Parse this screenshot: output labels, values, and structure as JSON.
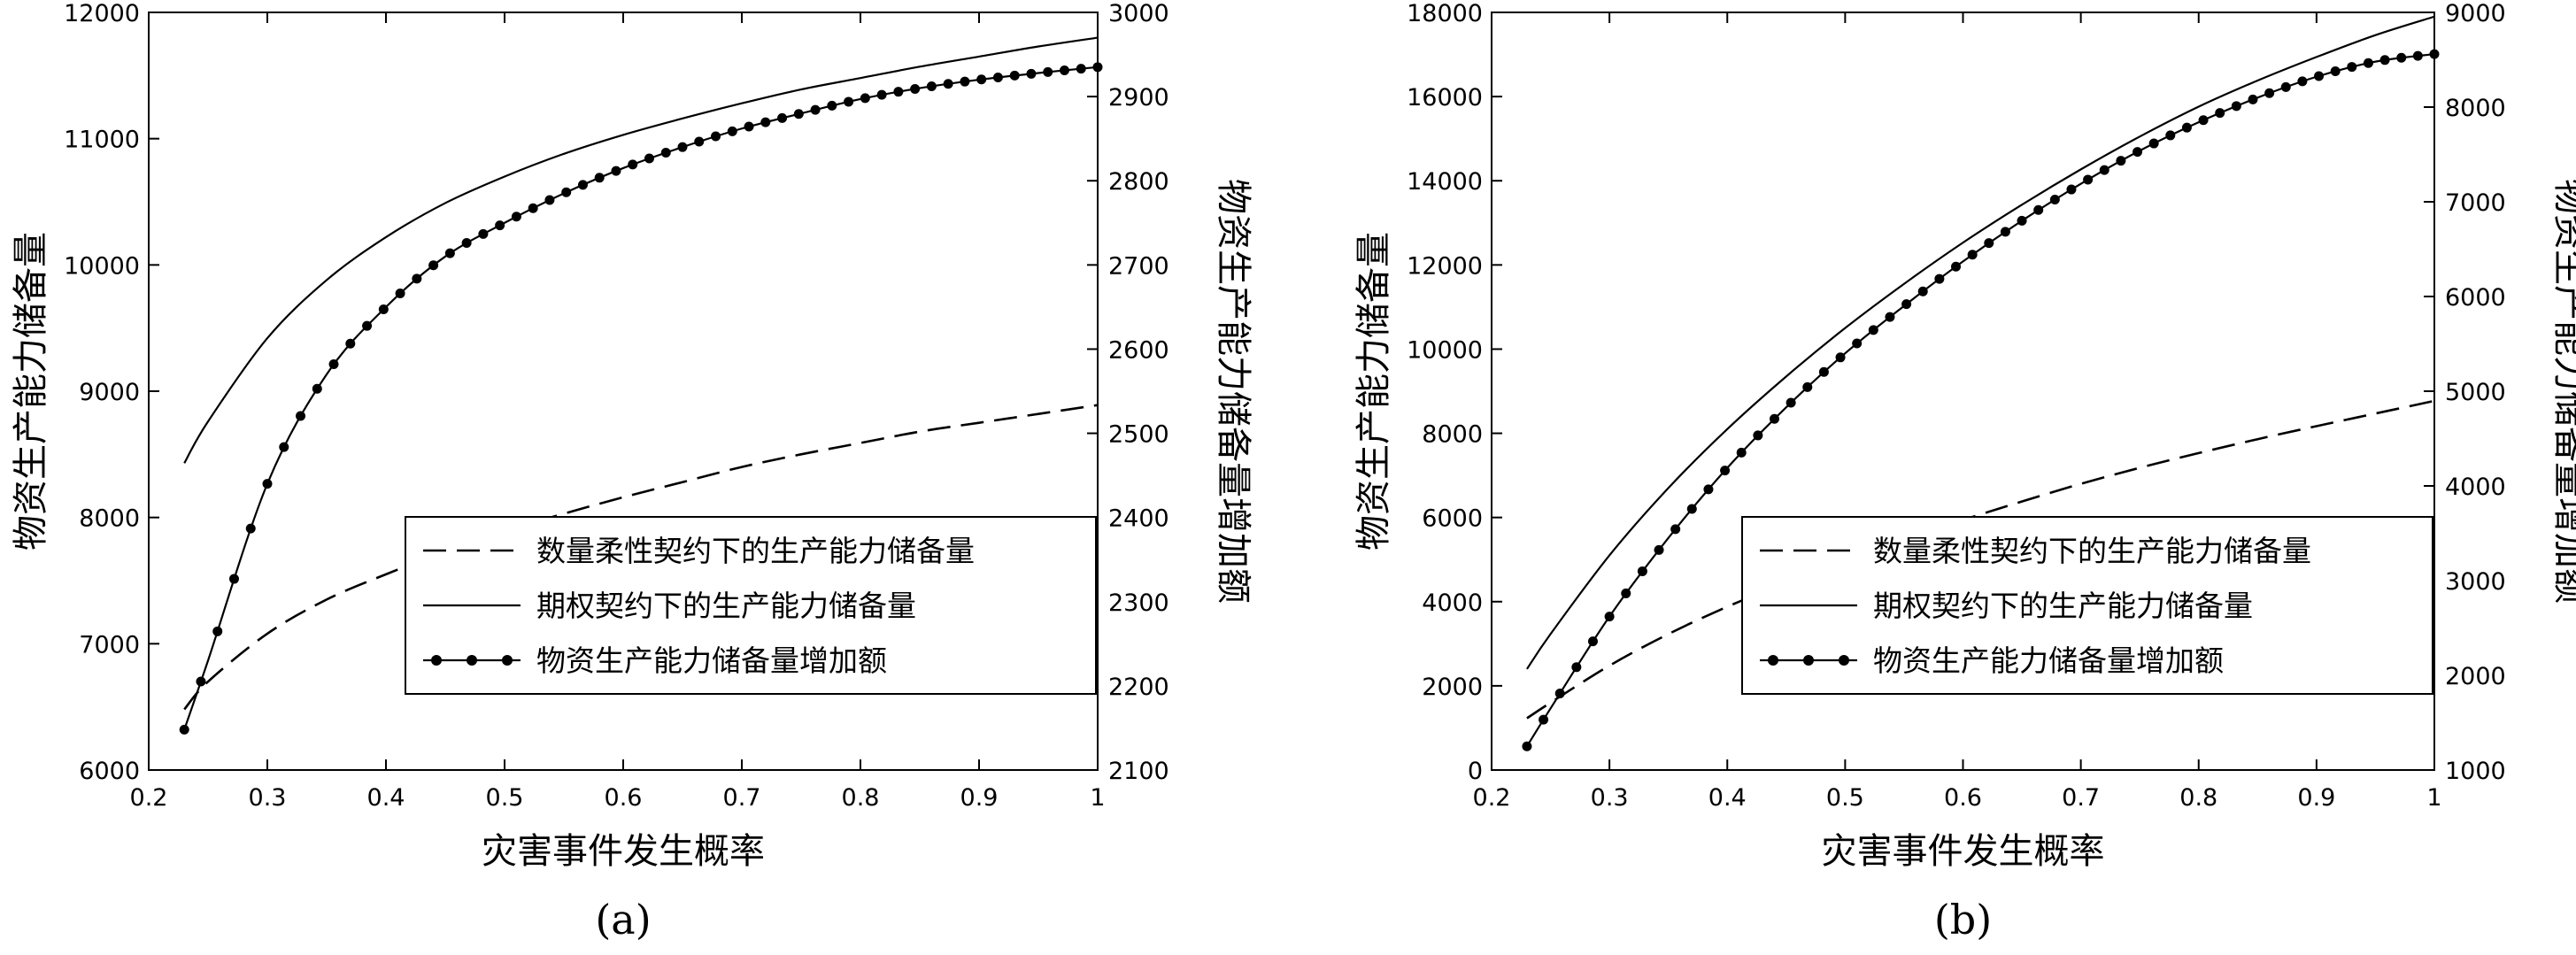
{
  "chart_data": [
    {
      "type": "line",
      "label": "(a)",
      "xlabel": "灾害事件发生概率",
      "ylabel": "物资生产能力储备量",
      "y2label": "物资生产能力储备量增加额",
      "xlim": [
        0.2,
        1
      ],
      "ylim": [
        6000,
        12000
      ],
      "y2lim": [
        2100,
        3000
      ],
      "xticks": [
        "0.2",
        "0.3",
        "0.4",
        "0.5",
        "0.6",
        "0.7",
        "0.8",
        "0.9",
        "1"
      ],
      "yticks": [
        "6000",
        "7000",
        "8000",
        "9000",
        "10000",
        "11000",
        "12000"
      ],
      "y2ticks": [
        "2100",
        "2200",
        "2300",
        "2400",
        "2500",
        "2600",
        "2700",
        "2800",
        "2900",
        "3000"
      ],
      "grid": false,
      "legend_position": "bottom-right",
      "series": [
        {
          "name": "数量柔性契约下的生产能力储备量",
          "axis": "left",
          "style": "dashed",
          "x": [
            0.23,
            0.25,
            0.3,
            0.35,
            0.4,
            0.45,
            0.5,
            0.55,
            0.6,
            0.65,
            0.7,
            0.75,
            0.8,
            0.85,
            0.9,
            0.95,
            1.0
          ],
          "y": [
            6480,
            6700,
            7080,
            7350,
            7550,
            7730,
            7890,
            8030,
            8160,
            8280,
            8400,
            8500,
            8590,
            8680,
            8750,
            8820,
            8890
          ]
        },
        {
          "name": "期权契约下的生产能力储备量",
          "axis": "left",
          "style": "solid",
          "x": [
            0.23,
            0.25,
            0.3,
            0.35,
            0.4,
            0.45,
            0.5,
            0.55,
            0.6,
            0.65,
            0.7,
            0.75,
            0.8,
            0.85,
            0.9,
            0.95,
            1.0
          ],
          "y": [
            8430,
            8760,
            9420,
            9880,
            10220,
            10490,
            10700,
            10880,
            11030,
            11160,
            11280,
            11390,
            11480,
            11570,
            11650,
            11730,
            11800
          ]
        },
        {
          "name": "物资生产能力储备量增加额",
          "axis": "right",
          "style": "solid-marker",
          "x": [
            0.23,
            0.25,
            0.3,
            0.35,
            0.4,
            0.45,
            0.5,
            0.55,
            0.6,
            0.65,
            0.7,
            0.75,
            0.8,
            0.85,
            0.9,
            0.95,
            1.0
          ],
          "y": [
            2148,
            2230,
            2440,
            2570,
            2650,
            2710,
            2750,
            2785,
            2815,
            2840,
            2862,
            2880,
            2897,
            2910,
            2920,
            2928,
            2935
          ]
        }
      ]
    },
    {
      "type": "line",
      "label": "(b)",
      "xlabel": "灾害事件发生概率",
      "ylabel": "物资生产能力储备量",
      "y2label": "物资生产能力储备量增加额",
      "xlim": [
        0.2,
        1
      ],
      "ylim": [
        0,
        18000
      ],
      "y2lim": [
        1000,
        9000
      ],
      "xticks": [
        "0.2",
        "0.3",
        "0.4",
        "0.5",
        "0.6",
        "0.7",
        "0.8",
        "0.9",
        "1"
      ],
      "yticks": [
        "0",
        "2000",
        "4000",
        "6000",
        "8000",
        "10000",
        "12000",
        "14000",
        "16000",
        "18000"
      ],
      "y2ticks": [
        "1000",
        "2000",
        "3000",
        "4000",
        "5000",
        "6000",
        "7000",
        "8000",
        "9000"
      ],
      "grid": false,
      "legend_position": "bottom-right",
      "series": [
        {
          "name": "数量柔性契约下的生产能力储备量",
          "axis": "left",
          "style": "dashed",
          "x": [
            0.23,
            0.25,
            0.3,
            0.35,
            0.4,
            0.45,
            0.5,
            0.55,
            0.6,
            0.65,
            0.7,
            0.75,
            0.8,
            0.85,
            0.9,
            0.95,
            1.0
          ],
          "y": [
            1230,
            1600,
            2480,
            3230,
            3880,
            4450,
            4980,
            5470,
            5940,
            6380,
            6800,
            7180,
            7530,
            7860,
            8170,
            8470,
            8770
          ]
        },
        {
          "name": "期权契约下的生产能力储备量",
          "axis": "left",
          "style": "solid",
          "x": [
            0.23,
            0.25,
            0.3,
            0.35,
            0.4,
            0.45,
            0.5,
            0.55,
            0.6,
            0.65,
            0.7,
            0.75,
            0.8,
            0.85,
            0.9,
            0.95,
            1.0
          ],
          "y": [
            2400,
            3230,
            5100,
            6700,
            8100,
            9350,
            10500,
            11550,
            12530,
            13430,
            14270,
            15050,
            15760,
            16380,
            16940,
            17460,
            17900
          ]
        },
        {
          "name": "物资生产能力储备量增加额",
          "axis": "right",
          "style": "solid-marker",
          "x": [
            0.23,
            0.25,
            0.3,
            0.35,
            0.4,
            0.45,
            0.5,
            0.55,
            0.6,
            0.65,
            0.7,
            0.75,
            0.8,
            0.85,
            0.9,
            0.95,
            1.0
          ],
          "y": [
            1250,
            1650,
            2620,
            3450,
            4190,
            4830,
            5400,
            5900,
            6370,
            6800,
            7190,
            7540,
            7840,
            8100,
            8320,
            8480,
            8560
          ]
        }
      ]
    }
  ]
}
